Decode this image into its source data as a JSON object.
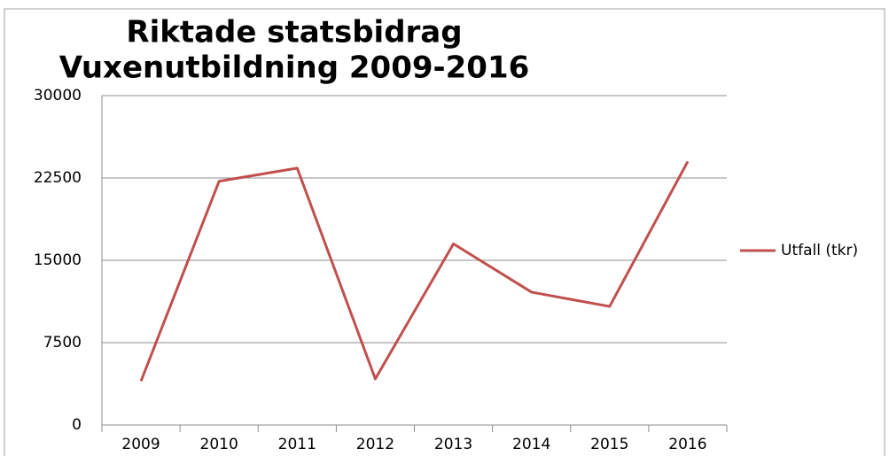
{
  "chart_data": {
    "type": "line",
    "title": [
      "Riktade statsbidrag",
      "Vuxenutbildning 2009-2016"
    ],
    "categories": [
      "2009",
      "2010",
      "2011",
      "2012",
      "2013",
      "2014",
      "2015",
      "2016"
    ],
    "series": [
      {
        "name": "Utfall (tkr)",
        "color": "#c0504d",
        "values": [
          4000,
          22200,
          23400,
          4200,
          16500,
          12100,
          10800,
          24000
        ]
      }
    ],
    "ylim": [
      0,
      30000
    ],
    "yticks": [
      0,
      7500,
      15000,
      22500,
      30000
    ],
    "grid": true,
    "legend": "right"
  }
}
